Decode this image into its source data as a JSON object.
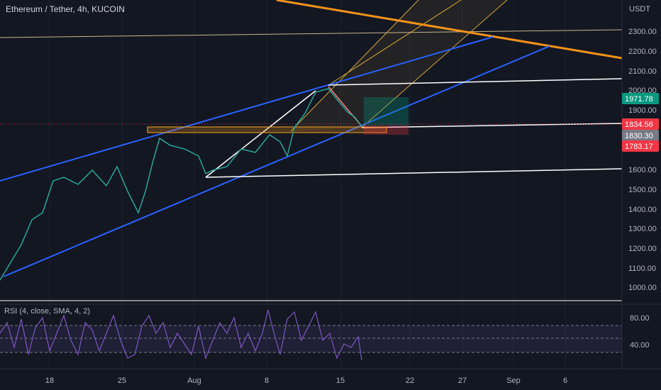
{
  "header": {
    "title": "Ethereum / Tether, 4h, KUCOIN"
  },
  "price_axis": {
    "unit": "USDT",
    "labels": [
      "2300.00",
      "2200.00",
      "2100.00",
      "2000.00",
      "1900.00",
      "1600.00",
      "1500.00",
      "1400.00",
      "1300.00",
      "1200.00",
      "1100.00",
      "1000.00"
    ]
  },
  "price_badges": [
    {
      "label": "1971.78",
      "color": "#089981"
    },
    {
      "label": "1834.56",
      "color": "#f23645"
    },
    {
      "label": "1830.30",
      "color": "#787b86"
    },
    {
      "label": "1783.17",
      "color": "#f23645"
    }
  ],
  "rsi": {
    "title": "RSI (4, close, SMA, 4, 2)",
    "labels": [
      "80.00",
      "40.00"
    ]
  },
  "time_axis": {
    "labels": [
      "18",
      "25",
      "Aug",
      "8",
      "15",
      "22",
      "27",
      "Sep",
      "6"
    ]
  }
}
